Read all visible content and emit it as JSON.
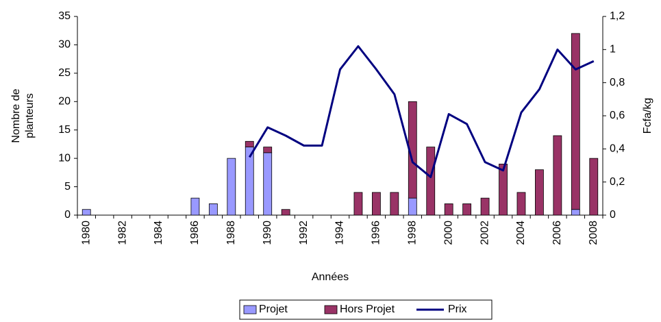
{
  "chart_data": {
    "type": "bar",
    "stacked": true,
    "xlabel": "Années",
    "ylabel": [
      "Nombre de",
      "planteurs"
    ],
    "y2label": "Fcfa/kg",
    "categories": [
      "1980",
      null,
      "1982",
      null,
      "1984",
      null,
      "1986",
      null,
      "1988",
      null,
      "1990",
      null,
      "1992",
      null,
      "1994",
      null,
      "1996",
      null,
      "1998",
      null,
      "2000",
      null,
      "2002",
      null,
      "2004",
      null,
      "2006",
      null,
      "2008"
    ],
    "series": [
      {
        "name": "Projet",
        "type": "bar",
        "color": "#9999ff",
        "values": [
          1,
          0,
          0,
          0,
          0,
          0,
          3,
          2,
          10,
          12,
          11,
          0,
          0,
          0,
          0,
          0,
          0,
          0,
          3,
          0,
          0,
          0,
          0,
          0,
          0,
          0,
          0,
          1,
          0
        ]
      },
      {
        "name": "Hors Projet",
        "type": "bar",
        "color": "#993366",
        "values": [
          0,
          0,
          0,
          0,
          0,
          0,
          0,
          0,
          0,
          1,
          1,
          1,
          0,
          0,
          0,
          4,
          4,
          4,
          17,
          12,
          2,
          2,
          3,
          9,
          4,
          8,
          14,
          31,
          10
        ]
      },
      {
        "name": "Prix",
        "type": "line",
        "axis": "y2",
        "color": "#000080",
        "values": [
          null,
          null,
          null,
          null,
          null,
          null,
          null,
          null,
          null,
          0.35,
          0.53,
          0.48,
          0.42,
          0.42,
          0.88,
          1.02,
          0.88,
          0.73,
          0.32,
          0.23,
          0.61,
          0.55,
          0.32,
          0.27,
          0.62,
          0.76,
          1.0,
          0.88,
          0.93
        ]
      }
    ],
    "ylim": [
      0,
      35
    ],
    "yticks": [
      0,
      5,
      10,
      15,
      20,
      25,
      30,
      35
    ],
    "y2lim": [
      0,
      1.2
    ],
    "y2ticks": [
      0,
      {
        "value": 0.2,
        "label": "0,2"
      },
      {
        "value": 0.4,
        "label": "0,4"
      },
      {
        "value": 0.6,
        "label": "0,6"
      },
      {
        "value": 0.8,
        "label": "0,8"
      },
      1,
      {
        "value": 1.2,
        "label": "1,2"
      }
    ],
    "legend": "bottom",
    "grid": false
  }
}
